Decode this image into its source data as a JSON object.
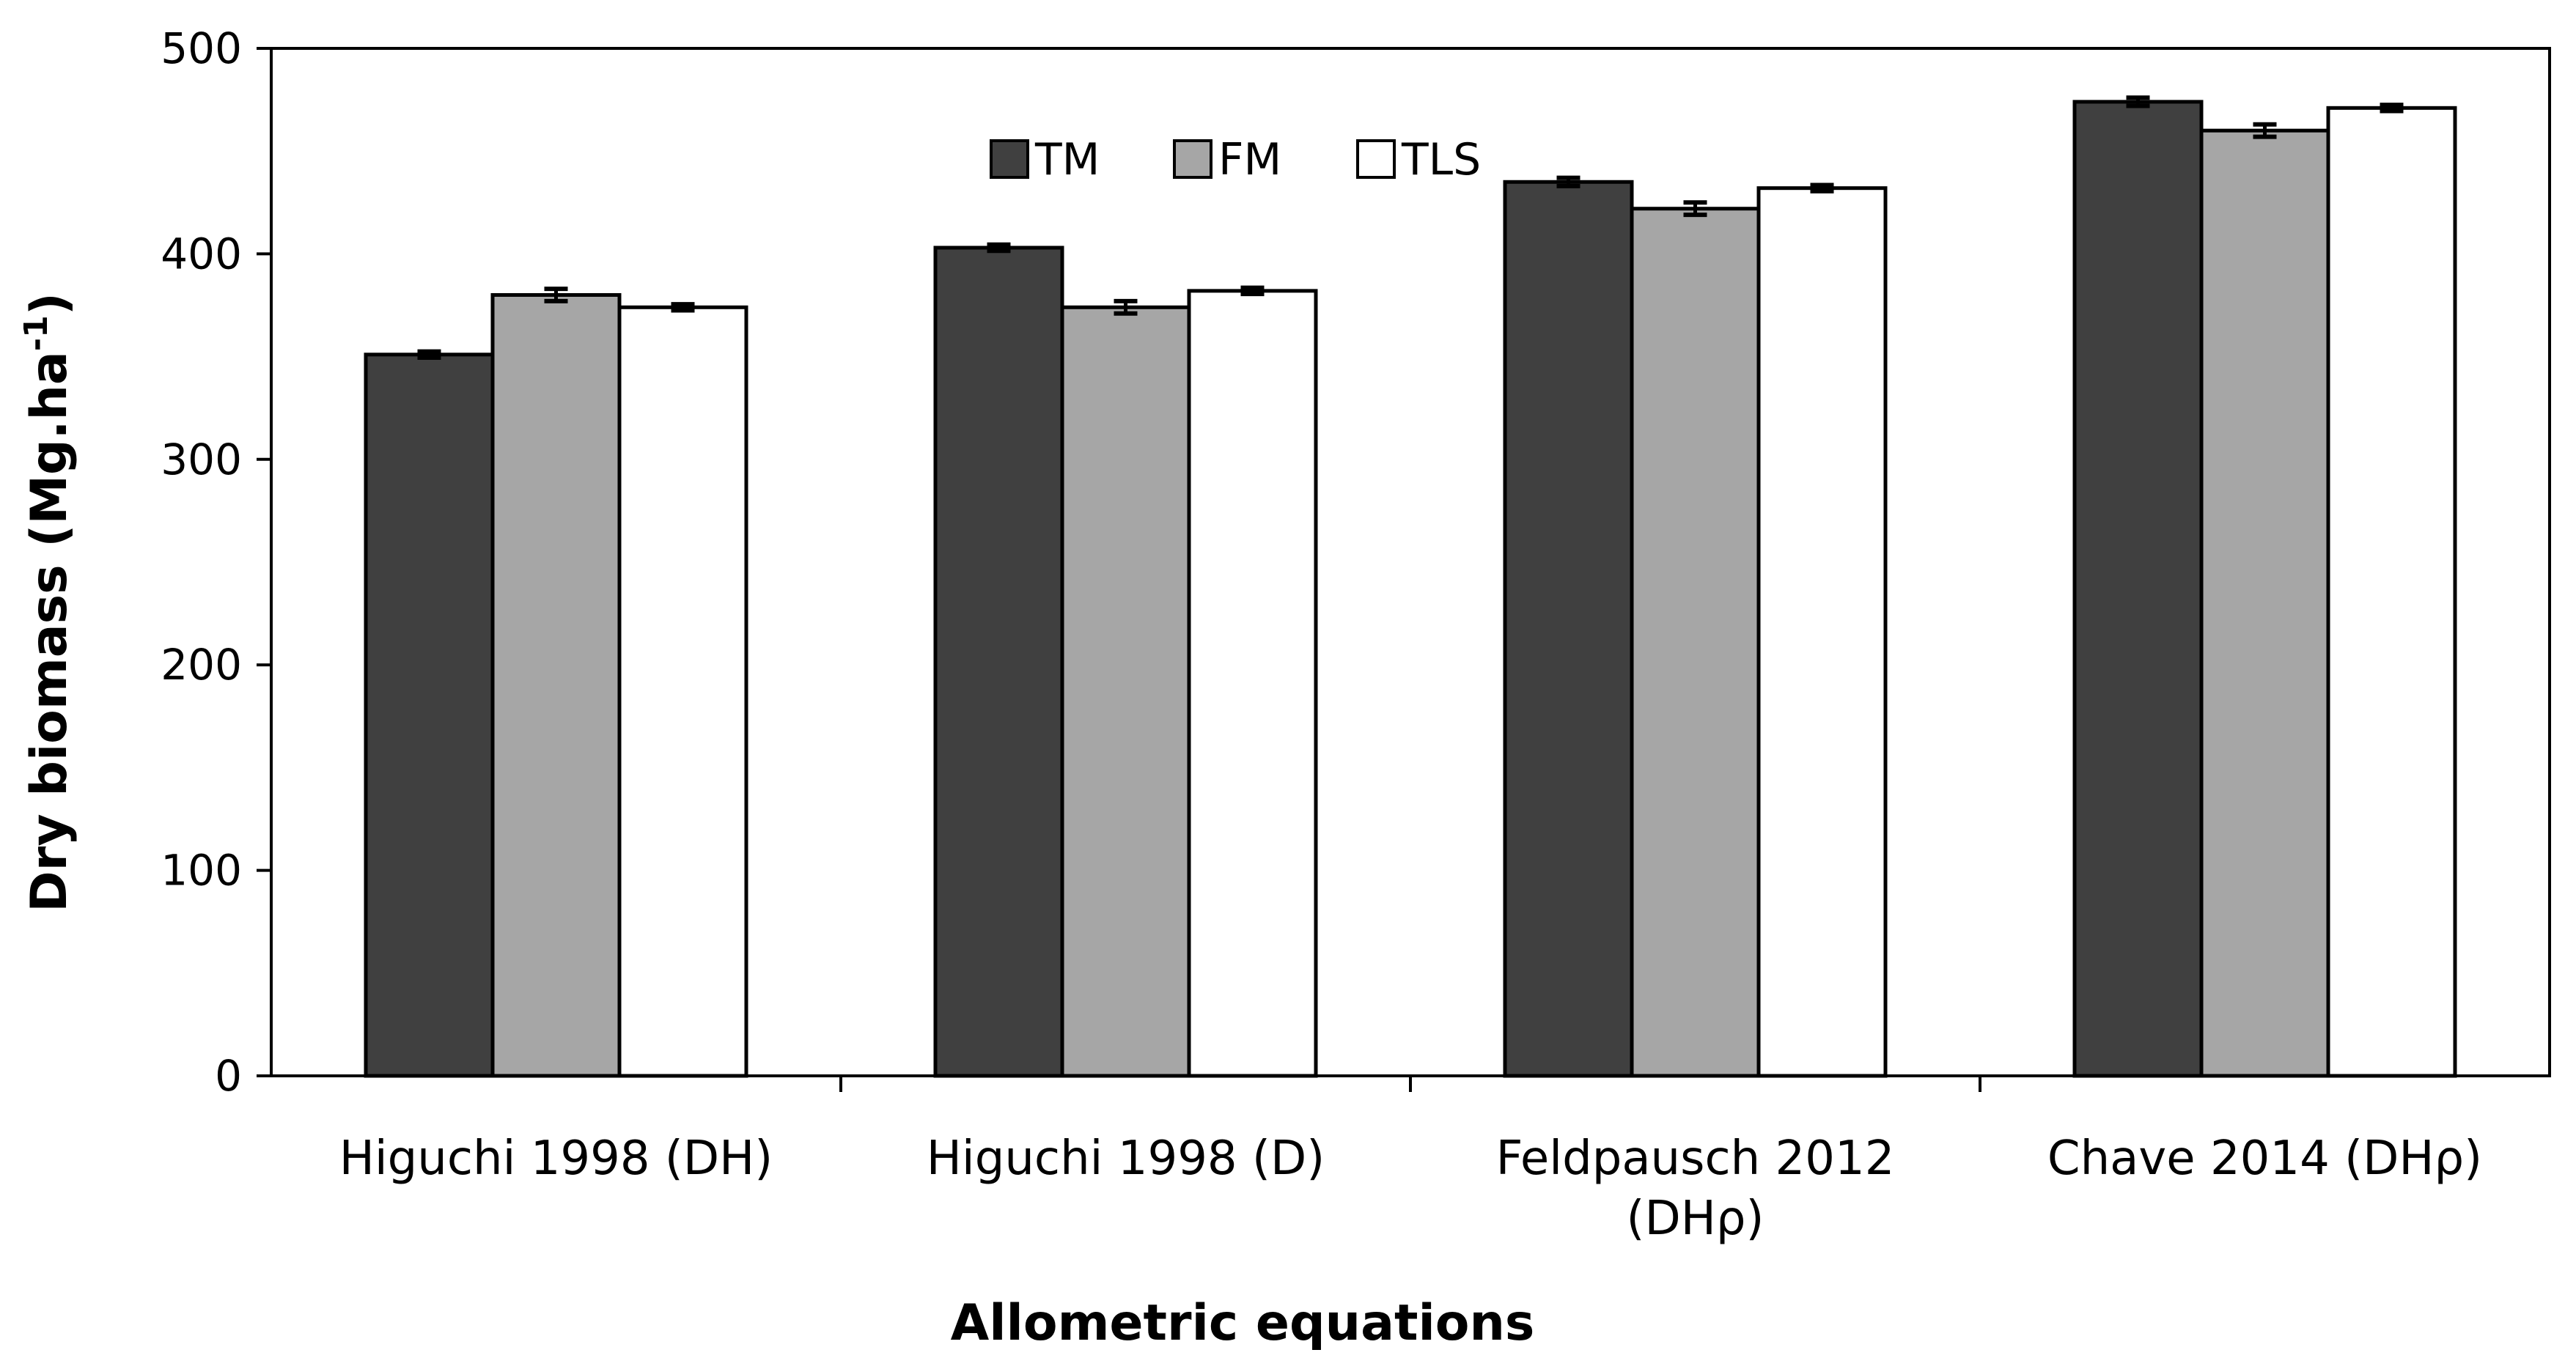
{
  "chart_data": {
    "type": "bar",
    "xlabel": "Allometric equations",
    "ylabel": "Dry biomass (Mg.ha",
    "ylabel_sup": "-1",
    "ylabel_suffix": ")",
    "ylim": [
      0,
      500
    ],
    "yticks": [
      0,
      100,
      200,
      300,
      400,
      500
    ],
    "grid": false,
    "legend_position": "top-center",
    "categories": [
      [
        "Higuchi 1998 (DH)"
      ],
      [
        "Higuchi 1998 (D)"
      ],
      [
        "Feldpausch 2012",
        "(DHρ)"
      ],
      [
        "Chave 2014 (DHρ)"
      ]
    ],
    "series": [
      {
        "name": "TM",
        "color": "#404040",
        "values": [
          351,
          403,
          435,
          474
        ],
        "errors": [
          1.5,
          1.5,
          2,
          2
        ]
      },
      {
        "name": "FM",
        "color": "#a6a6a6",
        "values": [
          380,
          374,
          422,
          460
        ],
        "errors": [
          3,
          3,
          3,
          3
        ]
      },
      {
        "name": "TLS",
        "color": "#ffffff",
        "values": [
          374,
          382,
          432,
          471
        ],
        "errors": [
          1.5,
          1.5,
          1.5,
          1.5
        ]
      }
    ]
  }
}
